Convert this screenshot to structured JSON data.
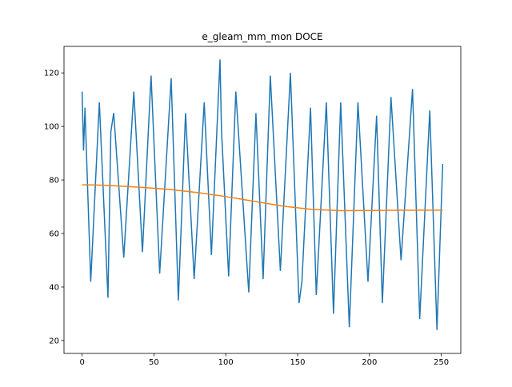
{
  "chart_data": {
    "type": "line",
    "title": "e_gleam_mm_mon DOCE",
    "series": [
      {
        "color": "#1f77b4",
        "x": [
          0,
          1,
          2,
          6,
          12,
          18,
          20,
          22,
          29,
          36,
          42,
          48,
          54,
          62,
          67,
          72,
          78,
          85,
          90,
          96,
          97,
          102,
          107,
          116,
          121,
          126,
          131,
          138,
          145,
          151,
          153,
          159,
          163,
          170,
          175,
          180,
          186,
          192,
          199,
          205,
          209,
          215,
          222,
          230,
          235,
          242,
          247,
          251
        ],
        "values": [
          113,
          91,
          107,
          42,
          109,
          36,
          98,
          105,
          51,
          113,
          53,
          119,
          45,
          118,
          35,
          105,
          43,
          109,
          52,
          125,
          99,
          44,
          113,
          38,
          105,
          43,
          119,
          46,
          120,
          34,
          42,
          107,
          37,
          109,
          30,
          109,
          25,
          109,
          42,
          104,
          34,
          111,
          50,
          114,
          28,
          106,
          24,
          86
        ]
      },
      {
        "color": "#ff7f0e",
        "x": [
          0,
          10,
          20,
          40,
          60,
          80,
          100,
          120,
          140,
          160,
          180,
          200,
          220,
          251
        ],
        "values": [
          78.2,
          78.1,
          77.9,
          77.3,
          76.5,
          75.3,
          73.8,
          72,
          70.2,
          69,
          68.5,
          68.6,
          68.7,
          68.7
        ]
      }
    ],
    "xlim": [
      -12.6,
      263.6
    ],
    "ylim": [
      15.2,
      129.9
    ],
    "xticks": [
      0,
      50,
      100,
      150,
      200,
      250
    ],
    "yticks": [
      20,
      40,
      60,
      80,
      100,
      120
    ]
  }
}
